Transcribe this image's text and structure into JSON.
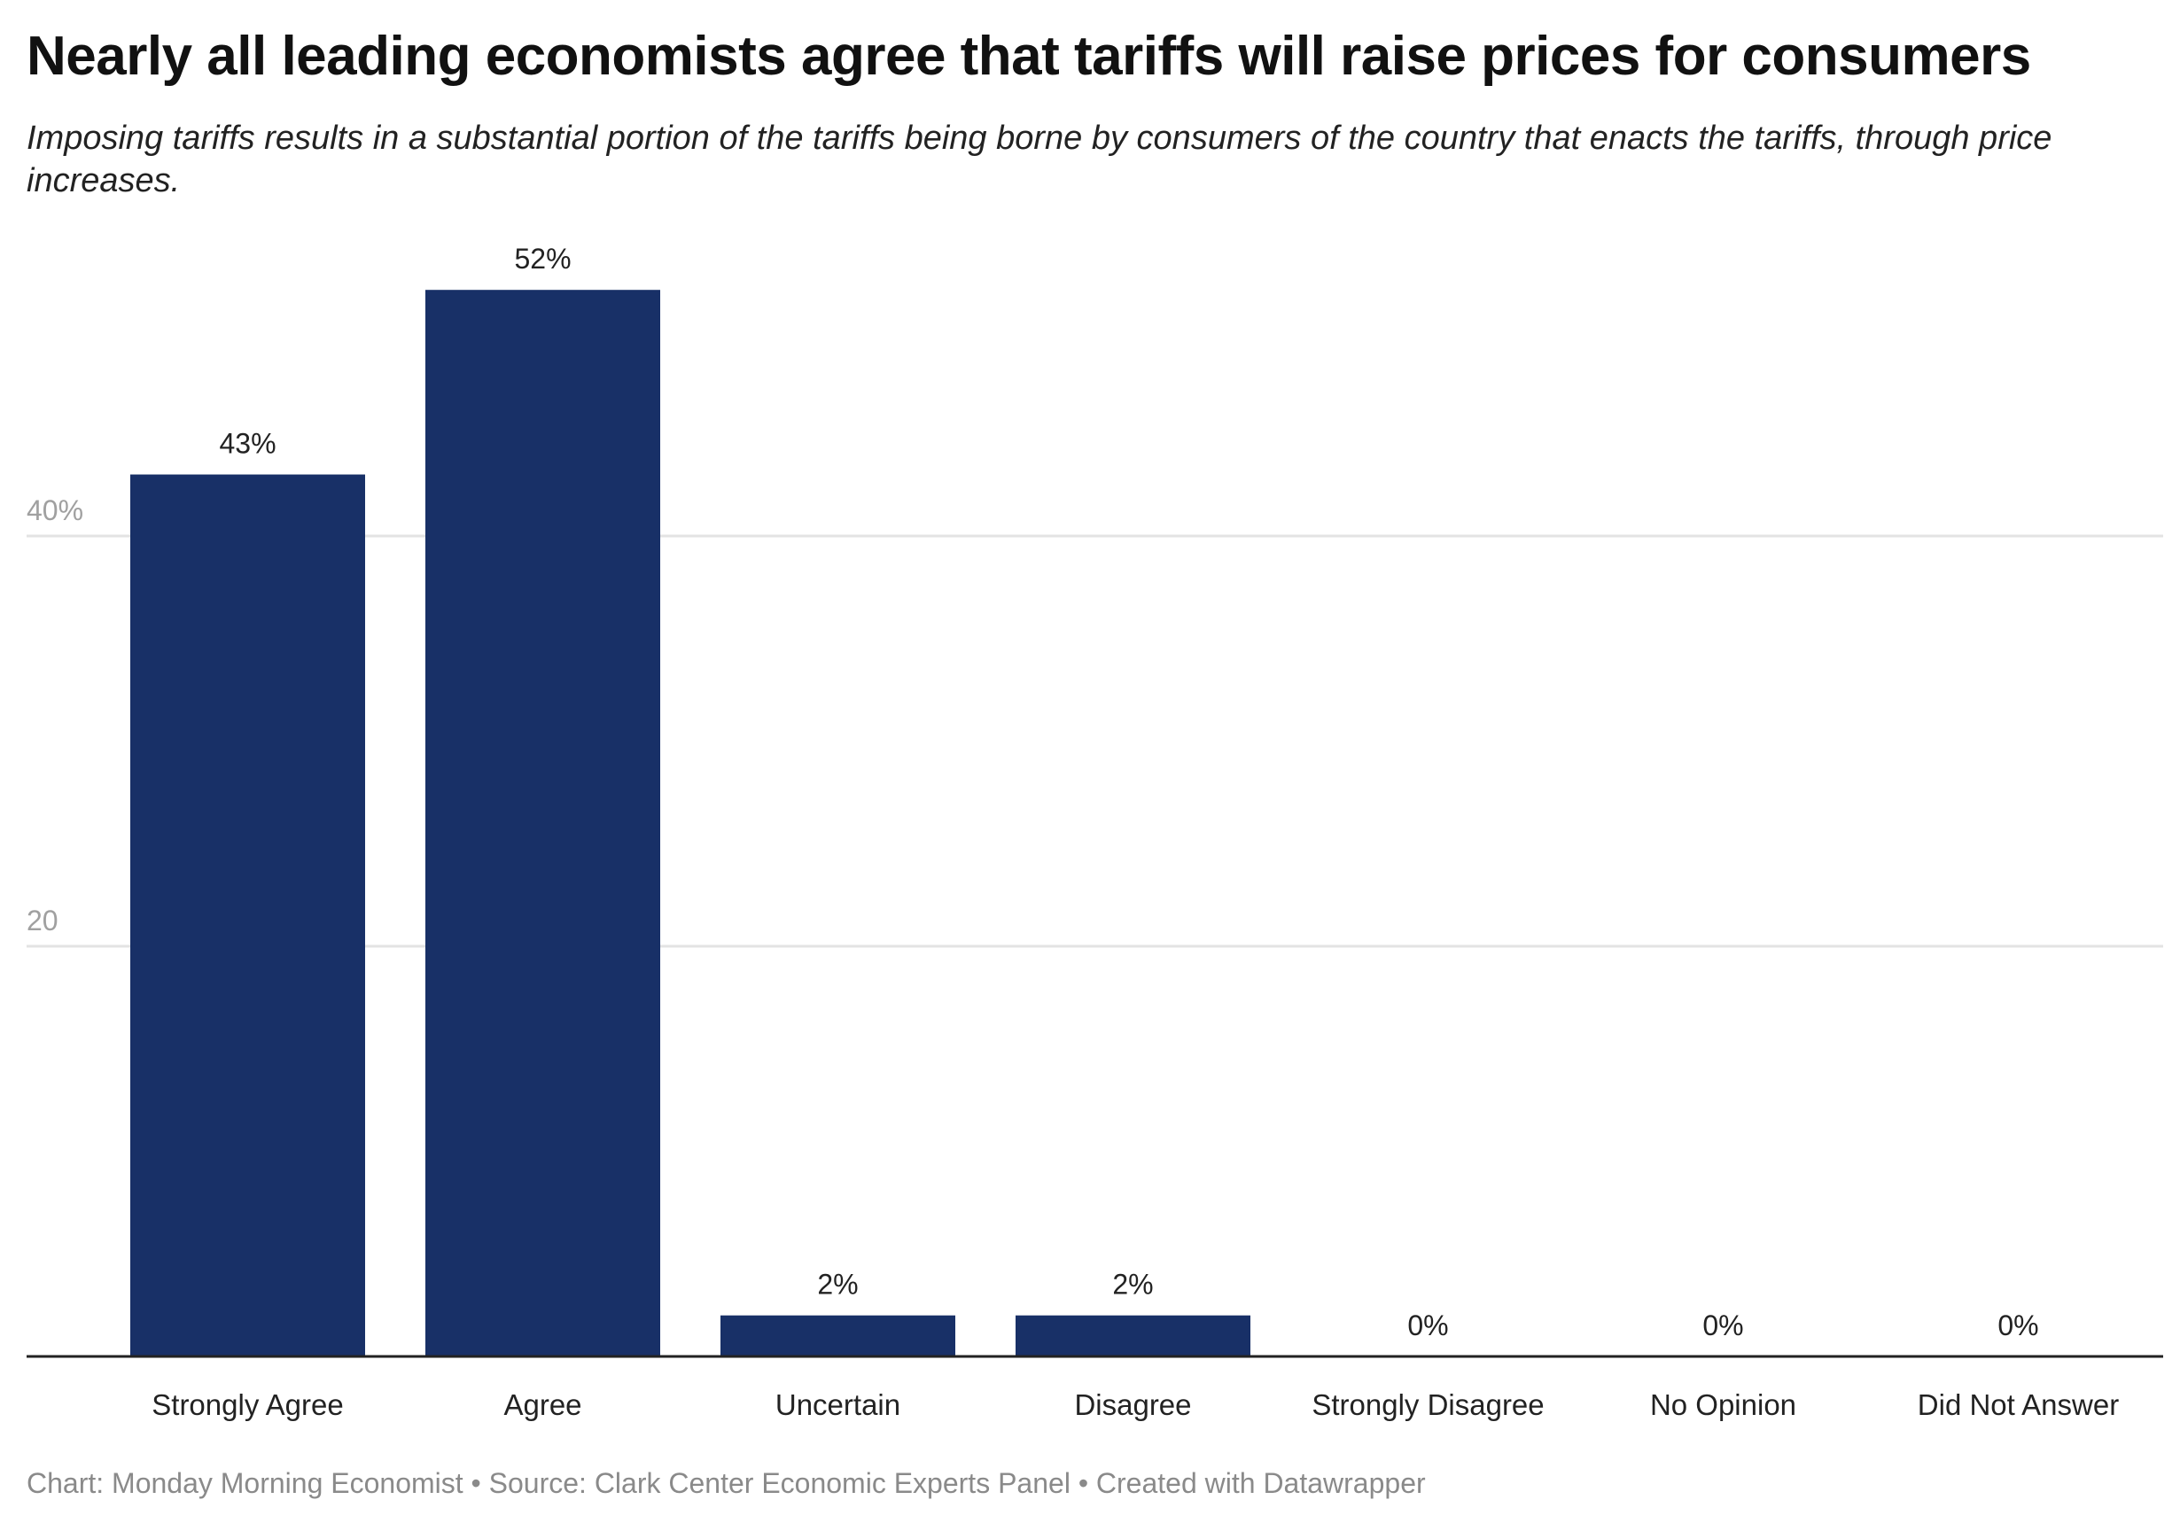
{
  "title": "Nearly all leading economists agree that tariffs will raise prices for consumers",
  "subtitle": "Imposing tariffs results in a substantial portion of the tariffs being borne by consumers of the country that enacts the tariffs, through price increases.",
  "footer": "Chart: Monday Morning Economist • Source: Clark Center Economic Experts Panel • Created with Datawrapper",
  "colors": {
    "bar": "#183067",
    "grid": "#e3e3e3",
    "tick": "#a0a0a0"
  },
  "chart_data": {
    "type": "bar",
    "categories": [
      "Strongly Agree",
      "Agree",
      "Uncertain",
      "Disagree",
      "Strongly Disagree",
      "No Opinion",
      "Did Not Answer"
    ],
    "values": [
      43,
      52,
      2,
      2,
      0,
      0,
      0
    ],
    "data_labels": [
      "43%",
      "52%",
      "2%",
      "2%",
      "0%",
      "0%",
      "0%"
    ],
    "yticks": [
      {
        "value": 20,
        "label": "20"
      },
      {
        "value": 40,
        "label": "40%"
      }
    ],
    "ylim": [
      0,
      52
    ],
    "grid": true,
    "xlabel": "",
    "ylabel": ""
  }
}
